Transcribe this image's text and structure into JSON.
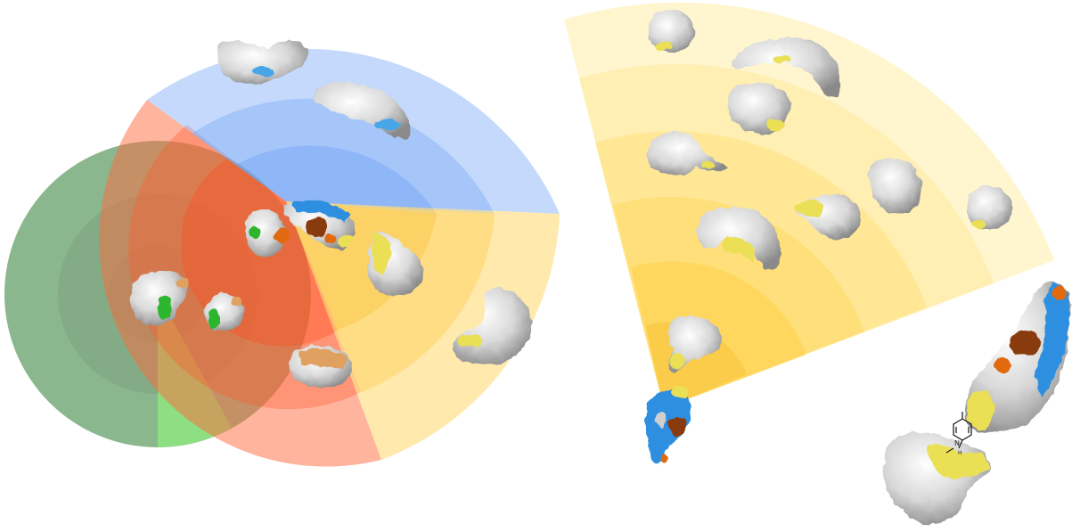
{
  "figure": {
    "panels": [
      "left-concentric-sectors",
      "right-fan-sector"
    ],
    "colors": {
      "green": "#2e7d32",
      "green_light": "#8de37f",
      "red": "#ff6a3d",
      "blue": "#8ab4f8",
      "yellow": "#ffd35a",
      "surface_grey": "#cfcfcf",
      "surface_white": "#f2f2f2",
      "hotspot_yellow": "#eadf55",
      "hotspot_blue": "#2d8fe0",
      "hotspot_orange": "#e06a10",
      "hotspot_brown": "#8a3a08",
      "hotspot_green": "#2fb52f",
      "hotspot_tan": "#e0a060"
    },
    "molecule_labels": {
      "nitrogen": "N",
      "hydrogen": "H"
    }
  }
}
